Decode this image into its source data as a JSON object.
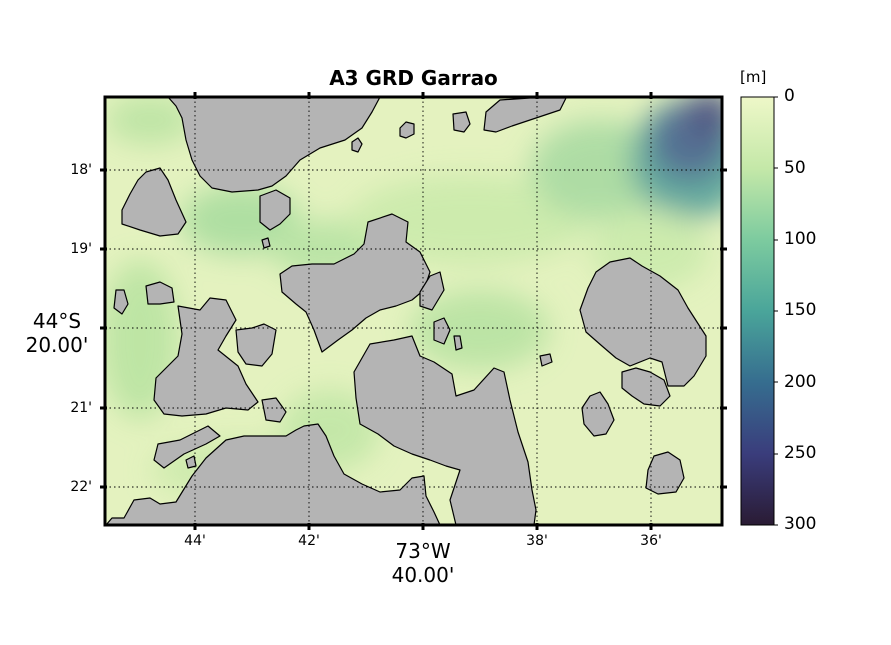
{
  "title": "A3 GRD Garrao",
  "colorbar": {
    "unit": "[m]",
    "ticks": [
      "0",
      "50",
      "100",
      "150",
      "200",
      "250",
      "300"
    ],
    "range": [
      0,
      300
    ],
    "colors": [
      "#e9f5c4",
      "#c2e7a6",
      "#7fcda0",
      "#4aa79a",
      "#35718f",
      "#3a4080",
      "#2b1d3a"
    ]
  },
  "axes": {
    "y_ticks": [
      "18'",
      "19'",
      "21'",
      "22'"
    ],
    "y_center_label": [
      "44°S",
      "20.00'"
    ],
    "x_ticks": [
      "44'",
      "42'",
      "38'",
      "36'"
    ],
    "x_center_label": [
      "73°W",
      "40.00'"
    ],
    "grid": "dotted"
  },
  "map": {
    "land_color": "#b4b4b4",
    "water_base_color": "#e4f2bf"
  }
}
